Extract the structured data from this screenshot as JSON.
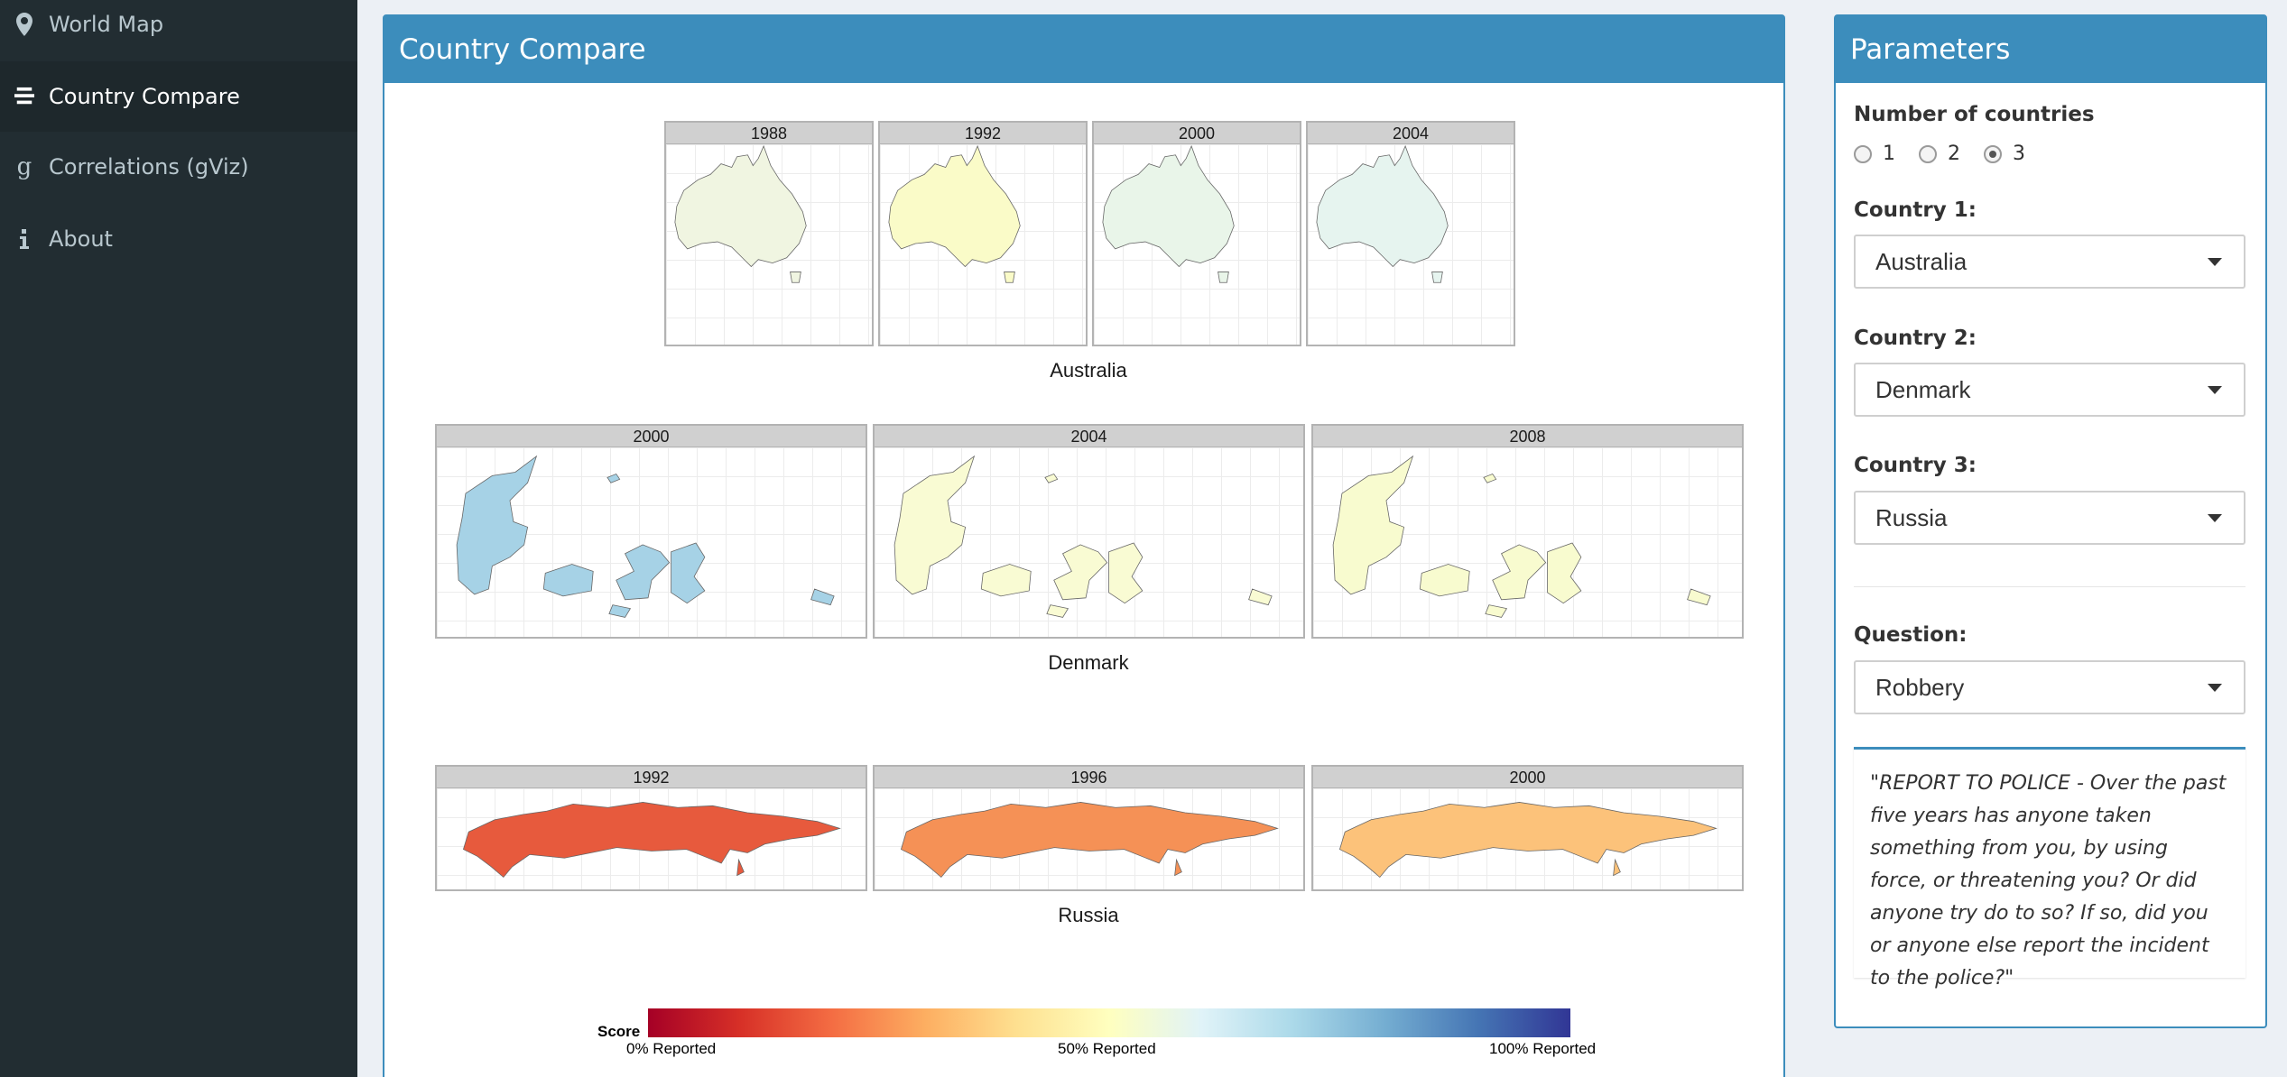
{
  "sidebar": {
    "items": [
      {
        "label": "World Map",
        "icon": "map-marker-icon"
      },
      {
        "label": "Country Compare",
        "icon": "bars-icon"
      },
      {
        "label": "Correlations (gViz)",
        "icon": "google-icon"
      },
      {
        "label": "About",
        "icon": "info-icon"
      }
    ],
    "active": "Country Compare"
  },
  "main": {
    "title": "Country Compare",
    "countries": [
      {
        "name": "Australia",
        "years": [
          "1988",
          "1992",
          "2000",
          "2004"
        ],
        "colors": [
          "#f0f5e1",
          "#fafbc8",
          "#e9f5e9",
          "#e6f4ef"
        ]
      },
      {
        "name": "Denmark",
        "years": [
          "2000",
          "2004",
          "2008"
        ],
        "colors": [
          "#a6d2e6",
          "#f9fbd3",
          "#f8fbcf"
        ]
      },
      {
        "name": "Russia",
        "years": [
          "1992",
          "1996",
          "2000"
        ],
        "colors": [
          "#e75a3d",
          "#f59156",
          "#fcc27a"
        ]
      }
    ],
    "legend": {
      "title": "Score",
      "ticks": [
        "0% Reported",
        "50%  Reported",
        "100%  Reported"
      ]
    }
  },
  "params": {
    "title": "Parameters",
    "num_countries_label": "Number of countries",
    "num_options": [
      "1",
      "2",
      "3"
    ],
    "num_selected": "3",
    "country1_label": "Country 1:",
    "country1_value": "Australia",
    "country2_label": "Country 2:",
    "country2_value": "Denmark",
    "country3_label": "Country 3:",
    "country3_value": "Russia",
    "question_label": "Question:",
    "question_value": "Robbery",
    "question_text": "\"REPORT TO POLICE - Over the past five years has anyone taken something from you, by using force, or threatening you? Or did anyone try do to so? If so, did you or anyone else report the incident to the police?\""
  }
}
